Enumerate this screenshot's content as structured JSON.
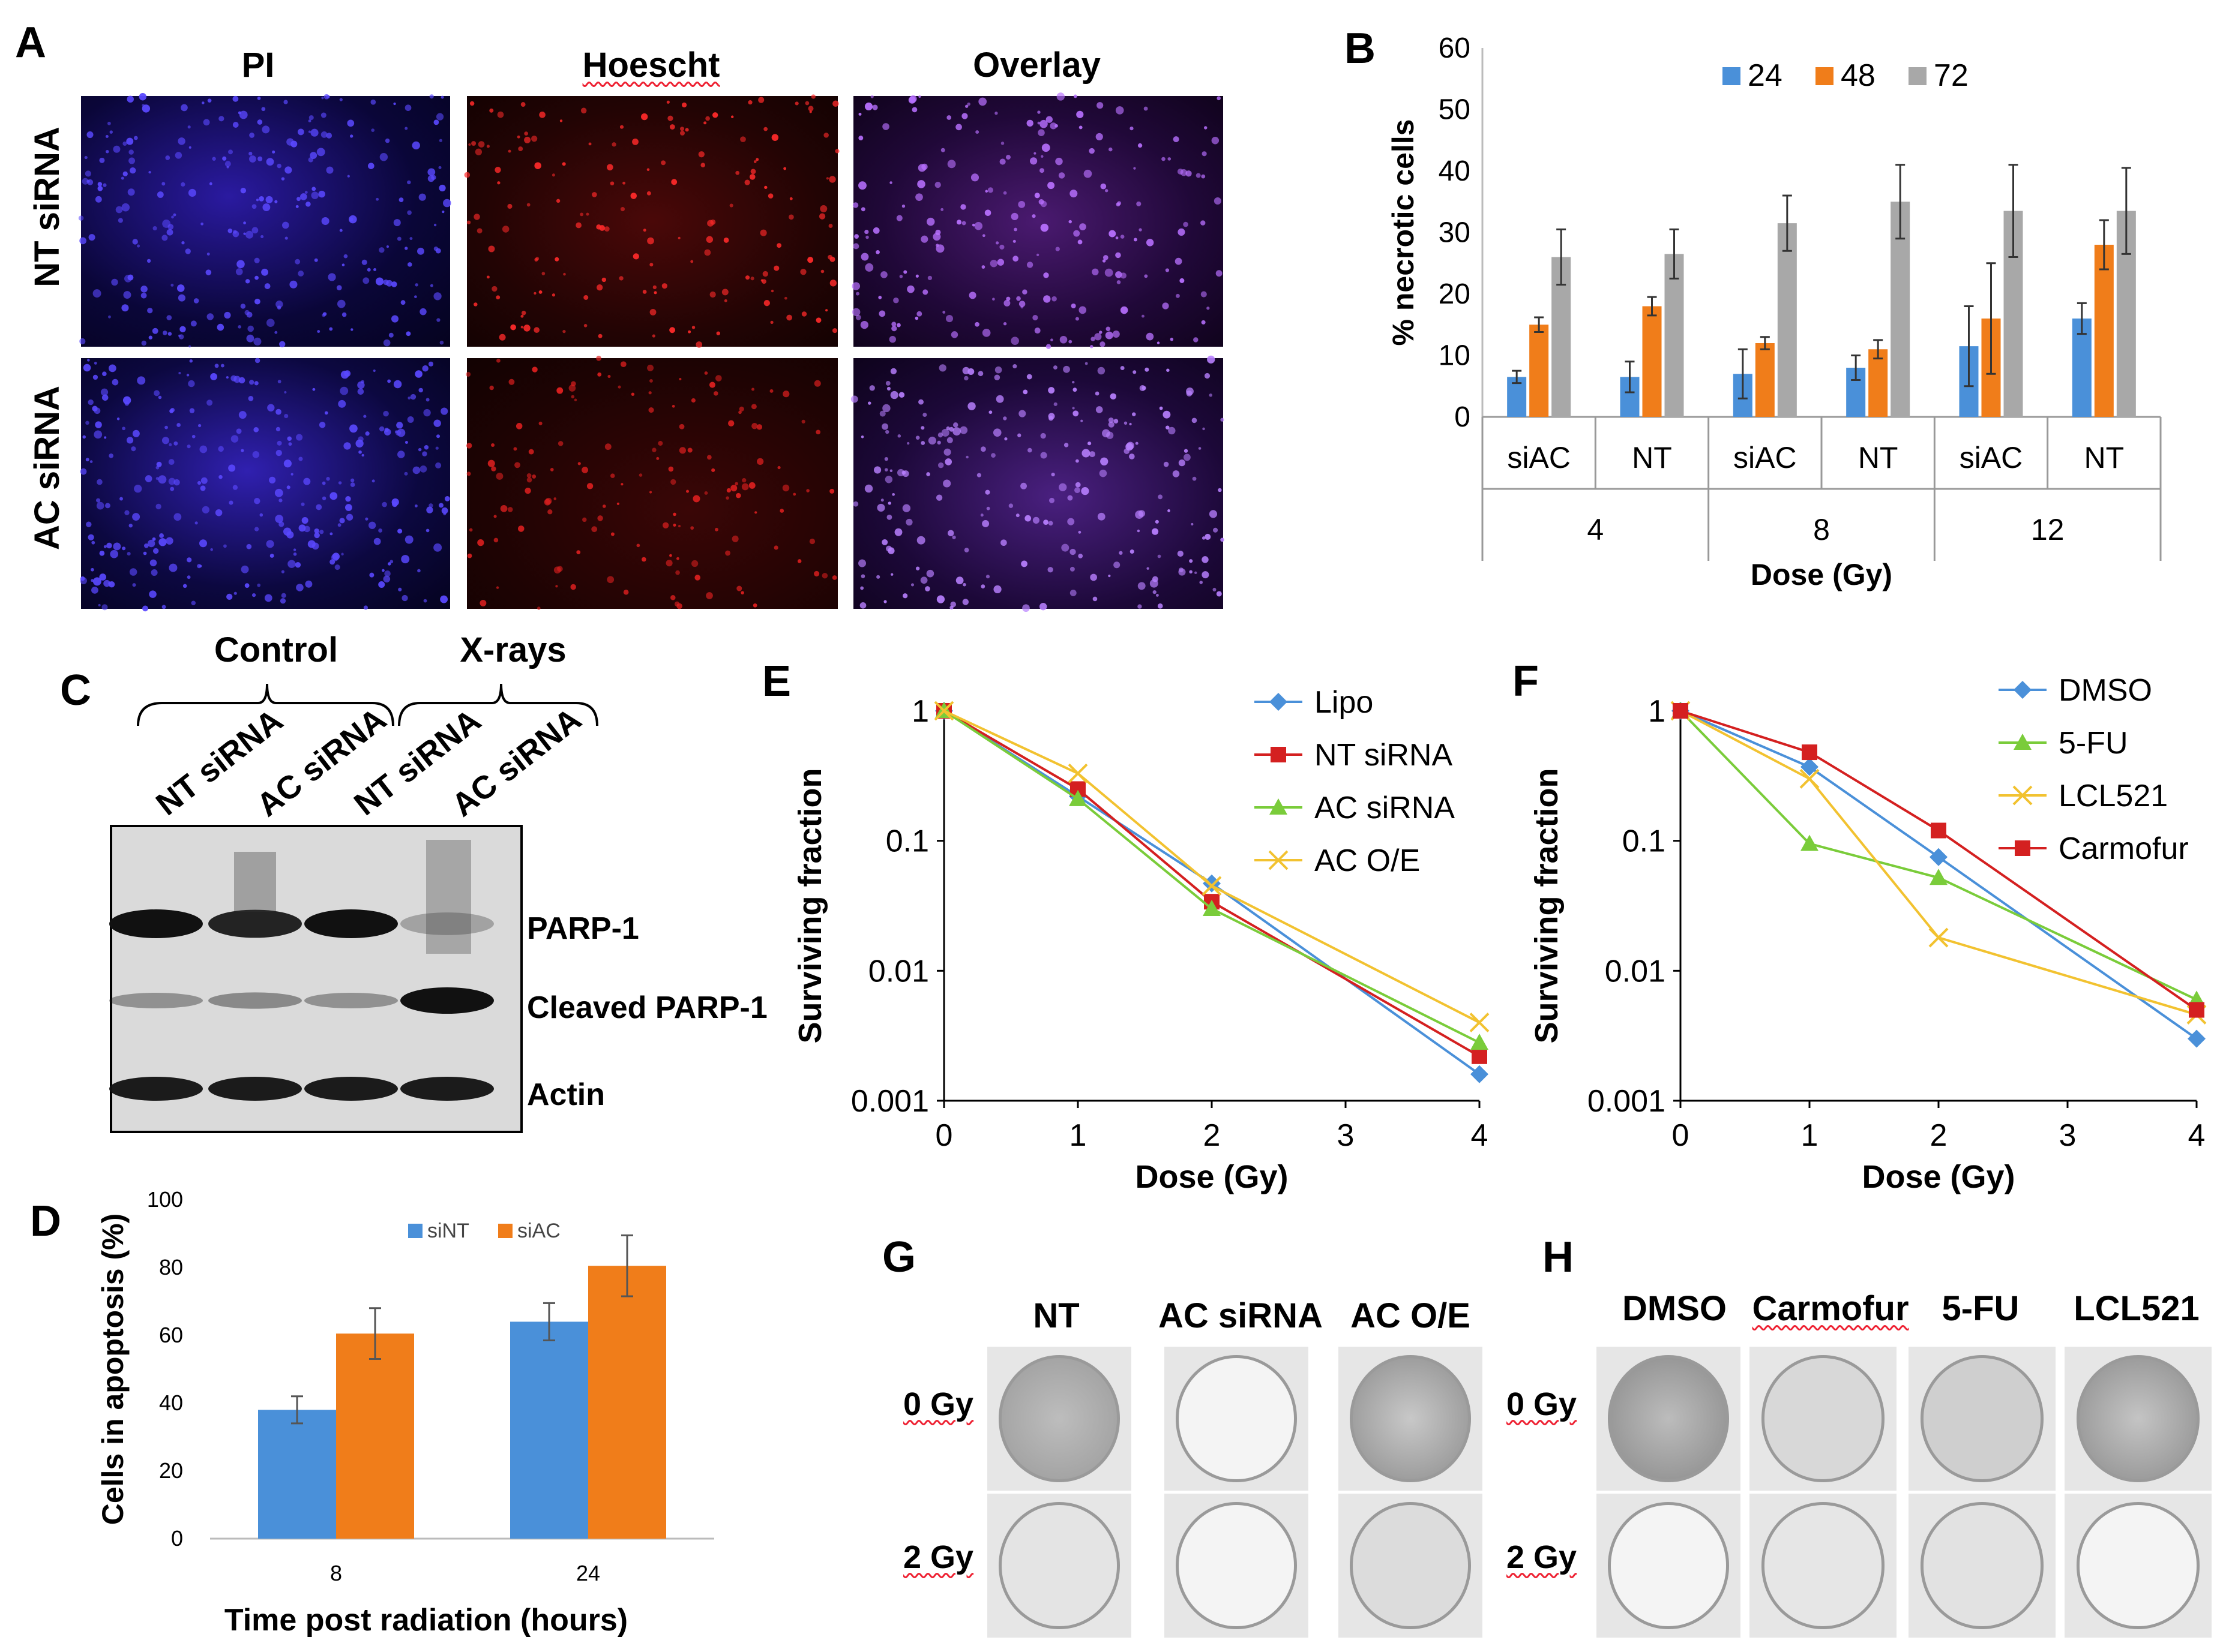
{
  "panel_labels": {
    "A": "A",
    "B": "B",
    "C": "C",
    "D": "D",
    "E": "E",
    "F": "F",
    "G": "G",
    "H": "H"
  },
  "panelA": {
    "columns": [
      "PI",
      "Hoescht",
      "Overlay"
    ],
    "rows": [
      "NT siRNA",
      "AC siRNA"
    ]
  },
  "panelC": {
    "group_labels": [
      "Control",
      "X-rays"
    ],
    "lanes": [
      "NT siRNA",
      "AC siRNA",
      "NT siRNA",
      "AC siRNA"
    ],
    "bands": [
      "PARP-1",
      "Cleaved PARP-1",
      "Actin"
    ]
  },
  "panelG": {
    "columns": [
      "NT",
      "AC siRNA",
      "AC O/E"
    ],
    "rows": [
      "0 Gy",
      "2 Gy"
    ]
  },
  "panelH": {
    "columns": [
      "DMSO",
      "Carmofur",
      "5-FU",
      "LCL521"
    ],
    "rows": [
      "0 Gy",
      "2 Gy"
    ]
  },
  "colors": {
    "blue": "#4a90d9",
    "orange": "#f07d1a",
    "gray": "#a8a8a8",
    "red": "#d42020",
    "green": "#7acc3a",
    "yellow": "#f2c230"
  },
  "chart_data": [
    {
      "id": "B",
      "type": "bar",
      "title": "",
      "ylabel": "% necrotic cells",
      "xlabel": "Dose (Gy)",
      "ylim": [
        0,
        60
      ],
      "yticks": [
        0,
        10,
        20,
        30,
        40,
        50,
        60
      ],
      "groups": [
        "4",
        "8",
        "12"
      ],
      "categories": [
        "siAC",
        "NT",
        "siAC",
        "NT",
        "siAC",
        "NT"
      ],
      "series": [
        {
          "name": "24",
          "color": "#4a90d9",
          "values": [
            6.5,
            6.5,
            7,
            8,
            11.5,
            16
          ],
          "errors": [
            1,
            2.5,
            4,
            2,
            6.5,
            2.5
          ]
        },
        {
          "name": "48",
          "color": "#f07d1a",
          "values": [
            15,
            18,
            12,
            11,
            16,
            28
          ],
          "errors": [
            1.2,
            1.5,
            1,
            1.5,
            9,
            4
          ]
        },
        {
          "name": "72",
          "color": "#a8a8a8",
          "values": [
            26,
            26.5,
            31.5,
            35,
            33.5,
            33.5
          ],
          "errors": [
            4.5,
            4,
            4.5,
            6,
            7.5,
            7
          ]
        }
      ]
    },
    {
      "id": "D",
      "type": "bar",
      "title": "",
      "ylabel": "Cells in apoptosis (%)",
      "xlabel": "Time post radiation (hours)",
      "ylim": [
        0,
        100
      ],
      "yticks": [
        0,
        20,
        40,
        60,
        80,
        100
      ],
      "categories": [
        "8",
        "24"
      ],
      "series": [
        {
          "name": "siNT",
          "color": "#4a90d9",
          "values": [
            38,
            64
          ],
          "errors": [
            4,
            5.5
          ]
        },
        {
          "name": "siAC",
          "color": "#f07d1a",
          "values": [
            60.5,
            80.5
          ],
          "errors": [
            7.5,
            9
          ]
        }
      ]
    },
    {
      "id": "E",
      "type": "line",
      "title": "",
      "ylabel": "Surviving fraction",
      "xlabel": "Dose (Gy)",
      "yscale": "log",
      "ylim": [
        0.001,
        1
      ],
      "yticks": [
        "1",
        "0.1",
        "0.01",
        "0.001"
      ],
      "xticks": [
        0,
        1,
        2,
        3,
        4
      ],
      "x": [
        0,
        1,
        2,
        4
      ],
      "series": [
        {
          "name": "Lipo",
          "color": "#4a90d9",
          "marker": "diamond",
          "values": [
            1,
            0.22,
            0.047,
            0.0016
          ]
        },
        {
          "name": "NT siRNA",
          "color": "#d42020",
          "marker": "square",
          "values": [
            1,
            0.25,
            0.034,
            0.0022
          ]
        },
        {
          "name": "AC siRNA",
          "color": "#7acc3a",
          "marker": "triangle",
          "values": [
            1,
            0.21,
            0.03,
            0.0028
          ]
        },
        {
          "name": "AC O/E",
          "color": "#f2c230",
          "marker": "x",
          "values": [
            1,
            0.33,
            0.045,
            0.004
          ]
        }
      ]
    },
    {
      "id": "F",
      "type": "line",
      "title": "",
      "ylabel": "Surviving fraction",
      "xlabel": "Dose (Gy)",
      "yscale": "log",
      "ylim": [
        0.001,
        1
      ],
      "yticks": [
        "1",
        "0.1",
        "0.01",
        "0.001"
      ],
      "xticks": [
        0,
        1,
        2,
        3,
        4
      ],
      "x": [
        0,
        1,
        2,
        4
      ],
      "series": [
        {
          "name": "DMSO",
          "color": "#4a90d9",
          "marker": "diamond",
          "values": [
            1,
            0.37,
            0.075,
            0.003
          ]
        },
        {
          "name": "5-FU",
          "color": "#7acc3a",
          "marker": "triangle",
          "values": [
            1,
            0.095,
            0.052,
            0.006
          ]
        },
        {
          "name": "LCL521",
          "color": "#f2c230",
          "marker": "x",
          "values": [
            1,
            0.3,
            0.018,
            0.0046
          ]
        },
        {
          "name": "Carmofur",
          "color": "#d42020",
          "marker": "square",
          "values": [
            1,
            0.48,
            0.12,
            0.005
          ]
        }
      ]
    }
  ]
}
